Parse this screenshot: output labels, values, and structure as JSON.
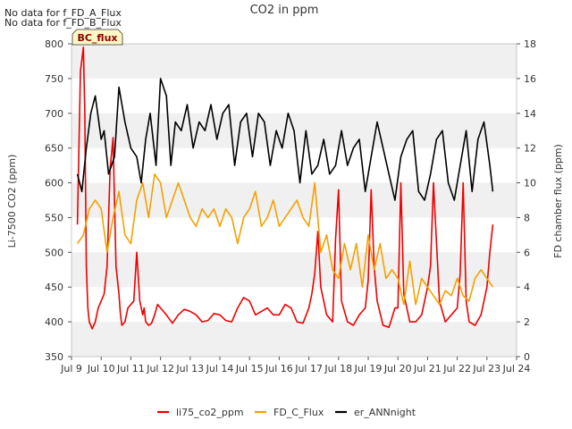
{
  "notes": [
    "No data for f_FD_A_Flux",
    "No data for f_FD_B_Flux"
  ],
  "badge": "BC_flux",
  "colors": {
    "li75": "#ee0000",
    "fdc": "#f5a000",
    "ann": "#000000",
    "band": "#f0f0f0"
  },
  "chart_data": {
    "type": "line",
    "title": "CO2 in ppm",
    "xlabel": "",
    "ylabel": "Li-7500 CO2 (ppm)",
    "y2label": "FD chamber flux (ppm)",
    "xlim": [
      9,
      24
    ],
    "ylim": [
      350,
      800
    ],
    "y2lim": [
      0,
      18
    ],
    "x_ticks": [
      9,
      10,
      11,
      12,
      13,
      14,
      15,
      16,
      17,
      18,
      19,
      20,
      21,
      22,
      23,
      24
    ],
    "x_tick_labels": [
      "Jul 9",
      "Jul 10",
      "Jul 11",
      "Jul 12",
      "Jul 13",
      "Jul 14",
      "Jul 15",
      "Jul 16",
      "Jul 17",
      "Jul 18",
      "Jul 19",
      "Jul 20",
      "Jul 21",
      "Jul 22",
      "Jul 23",
      "Jul 24"
    ],
    "y_ticks": [
      350,
      400,
      450,
      500,
      550,
      600,
      650,
      700,
      750,
      800
    ],
    "y2_ticks": [
      0,
      2,
      4,
      6,
      8,
      10,
      12,
      14,
      16,
      18
    ],
    "legend_position": "bottom",
    "series": [
      {
        "name": "li75_co2_ppm",
        "axis": "left",
        "x": [
          9.2,
          9.3,
          9.4,
          9.45,
          9.5,
          9.55,
          9.6,
          9.7,
          9.8,
          9.9,
          10.0,
          10.1,
          10.2,
          10.3,
          10.4,
          10.5,
          10.6,
          10.65,
          10.7,
          10.8,
          10.9,
          11.0,
          11.1,
          11.2,
          11.3,
          11.4,
          11.45,
          11.5,
          11.6,
          11.7,
          11.8,
          11.9,
          12.0,
          12.2,
          12.4,
          12.6,
          12.8,
          13.0,
          13.2,
          13.4,
          13.6,
          13.8,
          14.0,
          14.2,
          14.4,
          14.6,
          14.8,
          15.0,
          15.2,
          15.4,
          15.6,
          15.8,
          16.0,
          16.2,
          16.4,
          16.6,
          16.8,
          17.0,
          17.1,
          17.2,
          17.3,
          17.4,
          17.6,
          17.8,
          17.9,
          18.0,
          18.1,
          18.3,
          18.5,
          18.7,
          18.9,
          19.0,
          19.1,
          19.2,
          19.3,
          19.5,
          19.7,
          19.9,
          20.0,
          20.1,
          20.2,
          20.4,
          20.6,
          20.8,
          21.0,
          21.1,
          21.2,
          21.4,
          21.6,
          21.8,
          22.0,
          22.1,
          22.2,
          22.3,
          22.4,
          22.6,
          22.8,
          23.0,
          23.1,
          23.2
        ],
        "values": [
          540,
          760,
          795,
          700,
          480,
          420,
          400,
          390,
          400,
          420,
          430,
          440,
          480,
          620,
          665,
          480,
          440,
          410,
          395,
          400,
          420,
          425,
          430,
          500,
          430,
          410,
          420,
          400,
          395,
          398,
          410,
          425,
          420,
          410,
          398,
          410,
          418,
          415,
          410,
          400,
          402,
          412,
          410,
          402,
          400,
          420,
          435,
          430,
          410,
          415,
          420,
          410,
          410,
          425,
          420,
          400,
          398,
          420,
          440,
          470,
          530,
          450,
          410,
          400,
          520,
          590,
          430,
          400,
          395,
          410,
          420,
          460,
          590,
          480,
          430,
          395,
          392,
          420,
          420,
          600,
          440,
          400,
          400,
          410,
          450,
          480,
          600,
          430,
          400,
          410,
          420,
          470,
          600,
          430,
          400,
          395,
          410,
          450,
          500,
          540
        ]
      },
      {
        "name": "FD_C_Flux",
        "axis": "right",
        "x": [
          9.2,
          9.4,
          9.6,
          9.8,
          10.0,
          10.2,
          10.4,
          10.6,
          10.8,
          11.0,
          11.2,
          11.4,
          11.6,
          11.8,
          12.0,
          12.2,
          12.4,
          12.6,
          12.8,
          13.0,
          13.2,
          13.4,
          13.6,
          13.8,
          14.0,
          14.2,
          14.4,
          14.6,
          14.8,
          15.0,
          15.2,
          15.4,
          15.6,
          15.8,
          16.0,
          16.2,
          16.4,
          16.6,
          16.8,
          17.0,
          17.2,
          17.4,
          17.6,
          17.8,
          18.0,
          18.2,
          18.4,
          18.6,
          18.8,
          19.0,
          19.2,
          19.4,
          19.6,
          19.8,
          20.0,
          20.2,
          20.4,
          20.6,
          20.8,
          21.0,
          21.2,
          21.4,
          21.6,
          21.8,
          22.0,
          22.2,
          22.4,
          22.6,
          22.8,
          23.0,
          23.2
        ],
        "values": [
          6.5,
          7.0,
          8.5,
          9.0,
          8.5,
          6.0,
          8.0,
          9.5,
          7.0,
          6.5,
          9.0,
          10.0,
          8.0,
          10.5,
          10.0,
          8.0,
          9.0,
          10.0,
          9.0,
          8.0,
          7.5,
          8.5,
          8.0,
          8.5,
          7.5,
          8.5,
          8.0,
          6.5,
          8.0,
          8.5,
          9.5,
          7.5,
          8.0,
          9.0,
          7.5,
          8.0,
          8.5,
          9.0,
          8.0,
          7.5,
          10.0,
          6.0,
          7.0,
          5.0,
          4.5,
          6.5,
          5.0,
          6.5,
          4.0,
          7.0,
          5.0,
          6.5,
          4.5,
          5.0,
          4.5,
          3.0,
          5.5,
          3.0,
          4.5,
          4.0,
          3.5,
          3.0,
          3.8,
          3.5,
          4.5,
          3.5,
          3.2,
          4.5,
          5.0,
          4.5,
          4.0
        ]
      },
      {
        "name": "er_ANNnight",
        "axis": "right",
        "x": [
          9.2,
          9.35,
          9.5,
          9.65,
          9.8,
          10.0,
          10.1,
          10.25,
          10.45,
          10.6,
          10.8,
          11.0,
          11.2,
          11.35,
          11.5,
          11.65,
          11.85,
          12.0,
          12.2,
          12.35,
          12.5,
          12.7,
          12.9,
          13.1,
          13.3,
          13.5,
          13.7,
          13.9,
          14.1,
          14.3,
          14.5,
          14.7,
          14.9,
          15.1,
          15.3,
          15.5,
          15.7,
          15.9,
          16.1,
          16.3,
          16.5,
          16.7,
          16.9,
          17.1,
          17.3,
          17.5,
          17.7,
          17.9,
          18.1,
          18.3,
          18.5,
          18.7,
          18.9,
          19.1,
          19.3,
          19.5,
          19.7,
          19.9,
          20.1,
          20.3,
          20.5,
          20.7,
          20.9,
          21.1,
          21.3,
          21.5,
          21.7,
          21.9,
          22.1,
          22.3,
          22.5,
          22.7,
          22.9,
          23.1,
          23.2
        ],
        "values": [
          10.5,
          9.5,
          12.0,
          14.0,
          15.0,
          12.5,
          13.0,
          10.5,
          11.5,
          15.5,
          13.5,
          12.0,
          11.5,
          10.0,
          12.5,
          14.0,
          11.0,
          16.0,
          15.0,
          11.0,
          13.5,
          13.0,
          14.5,
          12.0,
          13.5,
          13.0,
          14.5,
          12.5,
          14.0,
          14.5,
          11.0,
          13.5,
          14.0,
          11.5,
          14.0,
          13.5,
          11.0,
          13.0,
          12.0,
          14.0,
          13.0,
          10.0,
          13.0,
          10.5,
          11.0,
          12.5,
          10.5,
          11.0,
          13.0,
          11.0,
          12.0,
          12.5,
          9.5,
          11.5,
          13.5,
          12.0,
          10.5,
          9.0,
          11.5,
          12.5,
          13.0,
          9.5,
          9.0,
          10.5,
          12.5,
          13.0,
          10.0,
          9.0,
          11.0,
          13.0,
          9.5,
          12.5,
          13.5,
          11.0,
          9.5
        ]
      }
    ]
  }
}
